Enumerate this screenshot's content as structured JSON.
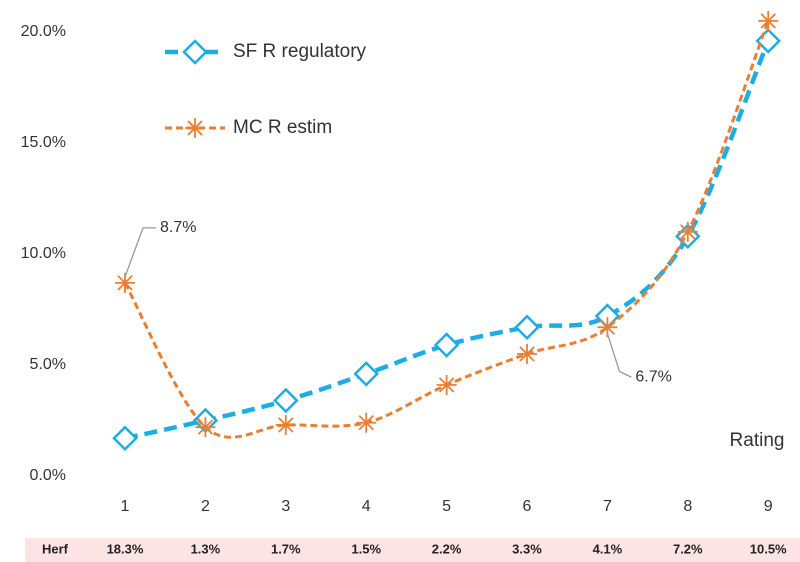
{
  "chart_data": {
    "type": "line",
    "categories": [
      "1",
      "2",
      "3",
      "4",
      "5",
      "6",
      "7",
      "8",
      "9"
    ],
    "series": [
      {
        "name": "SF R regulatory",
        "color": "#1aaee5",
        "marker": "diamond",
        "values": [
          1.7,
          2.5,
          3.4,
          4.6,
          5.9,
          6.7,
          7.2,
          10.8,
          19.6
        ]
      },
      {
        "name": "MC R estim",
        "color": "#ed7d31",
        "marker": "asterisk",
        "values": [
          8.7,
          2.2,
          2.3,
          2.4,
          4.1,
          5.5,
          6.7,
          11.0,
          20.5
        ],
        "value_labels": [
          "8.7%",
          null,
          null,
          null,
          null,
          null,
          "6.7%",
          null,
          null
        ]
      }
    ],
    "xlabel": "Rating",
    "ylim": [
      0,
      21
    ],
    "yticks": [
      {
        "value": 0,
        "label": "0.0%"
      },
      {
        "value": 5,
        "label": "5.0%"
      },
      {
        "value": 10,
        "label": "10.0%"
      },
      {
        "value": 15,
        "label": "15.0%"
      },
      {
        "value": 20,
        "label": "20.0%"
      }
    ],
    "grid": false,
    "legend": "top-left",
    "herf": {
      "label": "Herf",
      "values": [
        "18.3%",
        "1.3%",
        "1.7%",
        "1.5%",
        "2.2%",
        "3.3%",
        "4.1%",
        "7.2%",
        "10.5%"
      ]
    }
  }
}
